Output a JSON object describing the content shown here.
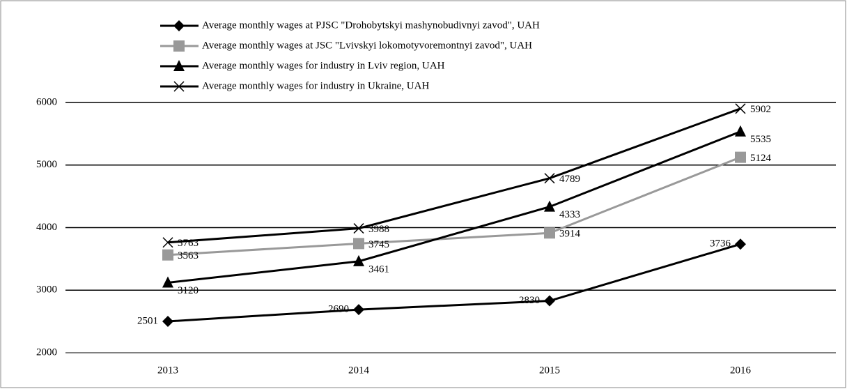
{
  "chart_data": {
    "type": "line",
    "categories": [
      "2013",
      "2014",
      "2015",
      "2016"
    ],
    "series": [
      {
        "name": "Average monthly wages at PJSC \"Drohobytskyi mashynobudivnyi zavod\", UAH",
        "color": "#000000",
        "marker": "diamond",
        "values": [
          2501,
          2690,
          2830,
          3736
        ]
      },
      {
        "name": "Average monthly wages at JSC \"Lvivskyi lokomotyvoremontnyi zavod\", UAH",
        "color": "#999999",
        "marker": "square",
        "values": [
          3563,
          3745,
          3914,
          5124
        ]
      },
      {
        "name": "Average monthly wages for industry in Lviv region, UAH",
        "color": "#000000",
        "marker": "triangle",
        "values": [
          3120,
          3461,
          4333,
          5535
        ]
      },
      {
        "name": "Average monthly wages for industry in Ukraine, UAH",
        "color": "#000000",
        "marker": "x",
        "values": [
          3763,
          3988,
          4789,
          5902
        ]
      }
    ],
    "ylim": [
      2000,
      6000
    ],
    "yticks": [
      2000,
      3000,
      4000,
      5000,
      6000
    ],
    "grid": true,
    "legend": "top"
  }
}
